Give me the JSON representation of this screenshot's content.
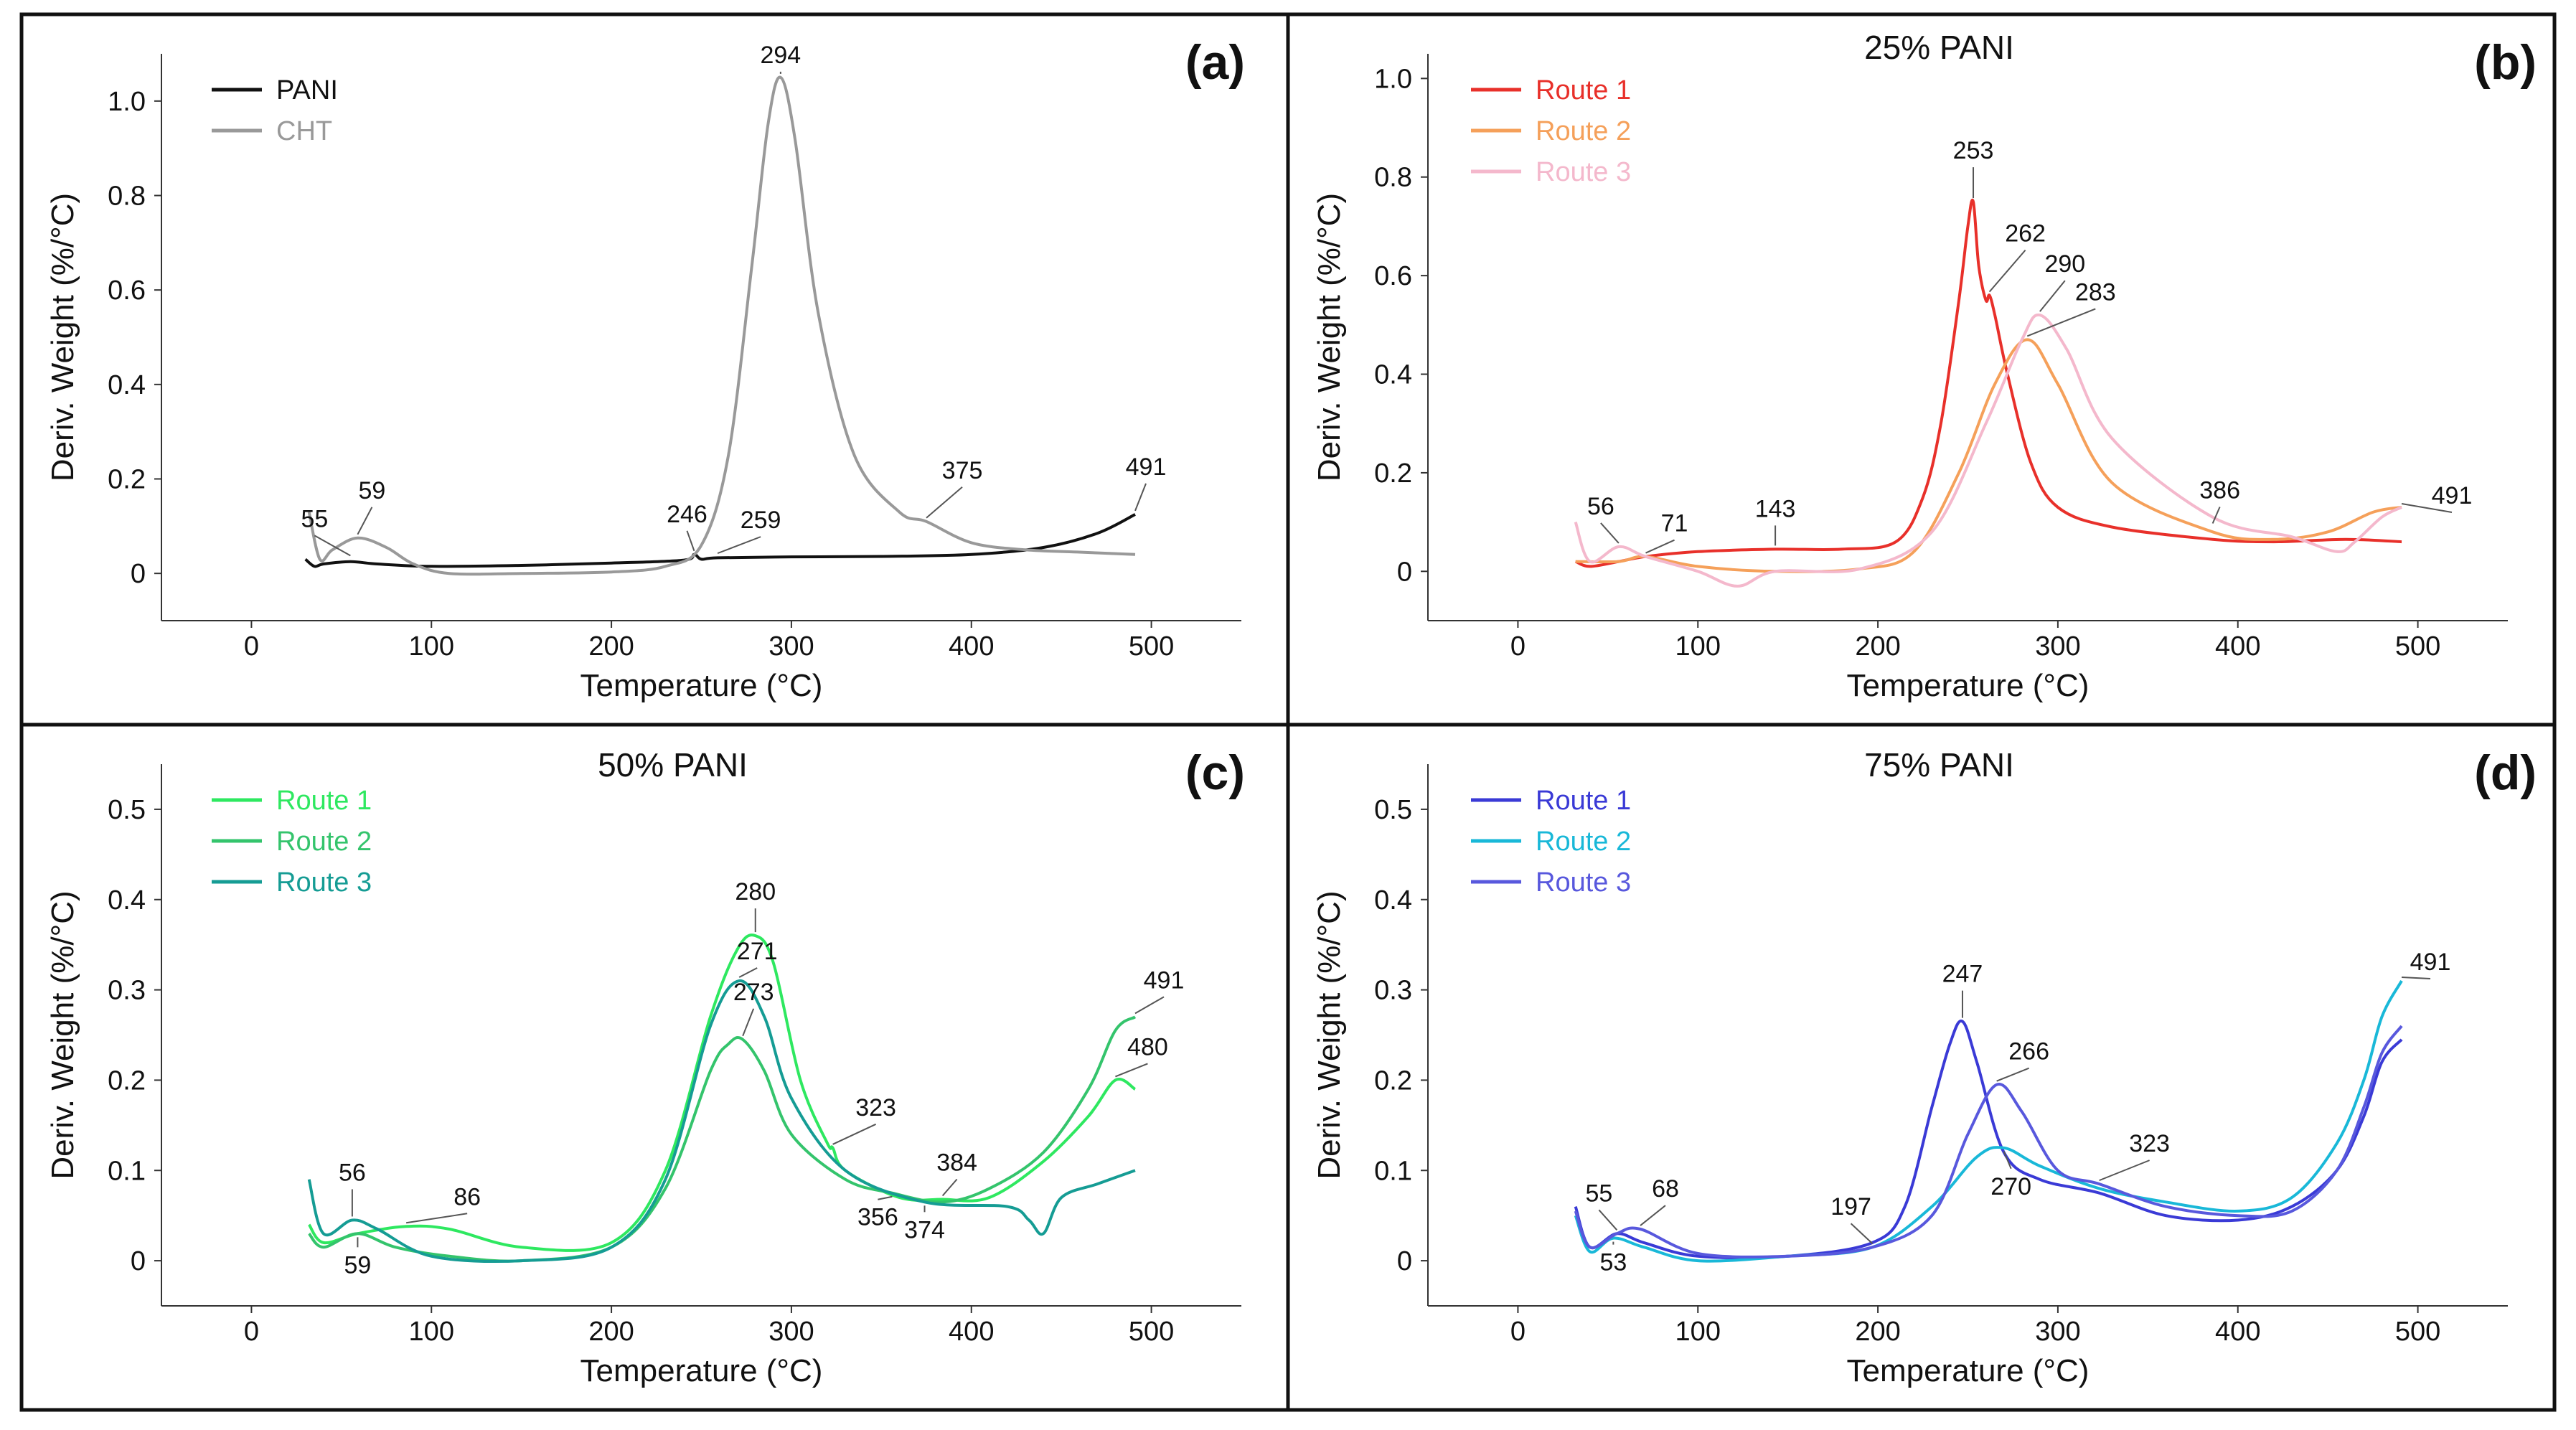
{
  "figure": {
    "axis_xlabel": "Temperature (°C)",
    "axis_ylabel": "Deriv. Weight (%/°C)"
  },
  "chart_data": [
    {
      "type": "line",
      "panel": "(a)",
      "title": "",
      "xlabel": "Temperature (°C)",
      "ylabel": "Deriv. Weight (%/°C)",
      "xlim": [
        -50,
        550
      ],
      "ylim": [
        -0.1,
        1.1
      ],
      "xticks": [
        0,
        100,
        200,
        300,
        400,
        500
      ],
      "yticks": [
        0,
        0.2,
        0.4,
        0.6,
        0.8,
        1.0
      ],
      "ytick_labels": [
        "0",
        "0.2",
        "0.4",
        "0.6",
        "0.8",
        "1.0"
      ],
      "legend": "top-left",
      "series": [
        {
          "name": "PANI",
          "color": "#111111",
          "x": [
            30,
            35,
            40,
            55,
            70,
            100,
            150,
            200,
            240,
            246,
            250,
            259,
            300,
            350,
            400,
            440,
            470,
            491
          ],
          "y": [
            0.03,
            0.015,
            0.02,
            0.025,
            0.02,
            0.015,
            0.017,
            0.022,
            0.028,
            0.04,
            0.03,
            0.033,
            0.035,
            0.036,
            0.04,
            0.055,
            0.085,
            0.125
          ]
        },
        {
          "name": "CHT",
          "color": "#999999",
          "x": [
            32,
            38,
            45,
            59,
            75,
            90,
            110,
            150,
            200,
            230,
            250,
            265,
            278,
            287,
            294,
            302,
            315,
            335,
            360,
            375,
            400,
            430,
            460,
            491
          ],
          "y": [
            0.13,
            0.03,
            0.05,
            0.075,
            0.055,
            0.02,
            0.0,
            0.0,
            0.003,
            0.015,
            0.06,
            0.25,
            0.65,
            0.95,
            1.05,
            0.92,
            0.55,
            0.25,
            0.13,
            0.11,
            0.065,
            0.05,
            0.045,
            0.04
          ]
        }
      ],
      "annotations": [
        {
          "text": "294",
          "x": 294,
          "y": 1.05
        },
        {
          "text": "59",
          "x": 59,
          "y": 0.075
        },
        {
          "text": "55",
          "x": 55,
          "y": 0.03
        },
        {
          "text": "246",
          "x": 246,
          "y": 0.04
        },
        {
          "text": "259",
          "x": 259,
          "y": 0.035
        },
        {
          "text": "375",
          "x": 375,
          "y": 0.11
        },
        {
          "text": "491",
          "x": 491,
          "y": 0.125
        }
      ]
    },
    {
      "type": "line",
      "panel": "(b)",
      "title": "25% PANI",
      "xlabel": "Temperature (°C)",
      "ylabel": "Deriv. Weight (%/°C)",
      "xlim": [
        -50,
        550
      ],
      "ylim": [
        -0.1,
        1.05
      ],
      "xticks": [
        0,
        100,
        200,
        300,
        400,
        500
      ],
      "yticks": [
        0,
        0.2,
        0.4,
        0.6,
        0.8,
        1.0
      ],
      "ytick_labels": [
        "0",
        "0.2",
        "0.4",
        "0.6",
        "0.8",
        "1.0"
      ],
      "legend": "top-left",
      "series": [
        {
          "name": "Route 1",
          "color": "#e8302a",
          "x": [
            32,
            40,
            56,
            71,
            100,
            143,
            180,
            210,
            225,
            235,
            245,
            250,
            253,
            256,
            260,
            262,
            265,
            272,
            285,
            300,
            330,
            386,
            420,
            460,
            491
          ],
          "y": [
            0.02,
            0.01,
            0.02,
            0.03,
            0.04,
            0.045,
            0.045,
            0.06,
            0.15,
            0.3,
            0.55,
            0.7,
            0.75,
            0.62,
            0.55,
            0.56,
            0.52,
            0.4,
            0.22,
            0.13,
            0.09,
            0.065,
            0.06,
            0.065,
            0.06
          ]
        },
        {
          "name": "Route 2",
          "color": "#f5a05a",
          "x": [
            32,
            56,
            71,
            100,
            143,
            190,
            220,
            245,
            265,
            283,
            300,
            330,
            386,
            420,
            450,
            475,
            491
          ],
          "y": [
            0.02,
            0.02,
            0.03,
            0.01,
            0.0,
            0.005,
            0.04,
            0.2,
            0.38,
            0.47,
            0.38,
            0.18,
            0.08,
            0.065,
            0.08,
            0.12,
            0.13
          ]
        },
        {
          "name": "Route 3",
          "color": "#f4b8cc",
          "x": [
            32,
            40,
            56,
            71,
            100,
            122,
            143,
            190,
            230,
            260,
            280,
            290,
            305,
            330,
            386,
            430,
            455,
            465,
            480,
            491
          ],
          "y": [
            0.1,
            0.02,
            0.05,
            0.03,
            0.0,
            -0.03,
            0.0,
            0.005,
            0.08,
            0.3,
            0.47,
            0.52,
            0.45,
            0.27,
            0.11,
            0.07,
            0.04,
            0.06,
            0.11,
            0.13
          ]
        }
      ],
      "annotations": [
        {
          "text": "253",
          "x": 253,
          "y": 0.75
        },
        {
          "text": "262",
          "x": 262,
          "y": 0.56
        },
        {
          "text": "290",
          "x": 290,
          "y": 0.52
        },
        {
          "text": "283",
          "x": 283,
          "y": 0.47
        },
        {
          "text": "56",
          "x": 56,
          "y": 0.05
        },
        {
          "text": "71",
          "x": 71,
          "y": 0.03
        },
        {
          "text": "143",
          "x": 143,
          "y": 0.045
        },
        {
          "text": "386",
          "x": 386,
          "y": 0.09
        },
        {
          "text": "491",
          "x": 491,
          "y": 0.13
        }
      ]
    },
    {
      "type": "line",
      "panel": "(c)",
      "title": "50% PANI",
      "xlabel": "Temperature (°C)",
      "ylabel": "Deriv. Weight (%/°C)",
      "xlim": [
        -50,
        550
      ],
      "ylim": [
        -0.05,
        0.55
      ],
      "xticks": [
        0,
        100,
        200,
        300,
        400,
        500
      ],
      "yticks": [
        0,
        0.1,
        0.2,
        0.3,
        0.4,
        0.5
      ],
      "ytick_labels": [
        "0",
        "0.1",
        "0.2",
        "0.3",
        "0.4",
        "0.5"
      ],
      "legend": "top-left",
      "series": [
        {
          "name": "Route 1",
          "color": "#2ee860",
          "x": [
            32,
            40,
            59,
            86,
            110,
            150,
            200,
            230,
            255,
            270,
            280,
            290,
            305,
            320,
            323,
            330,
            360,
            384,
            410,
            440,
            465,
            480,
            491
          ],
          "y": [
            0.04,
            0.02,
            0.03,
            0.038,
            0.035,
            0.015,
            0.02,
            0.1,
            0.27,
            0.345,
            0.36,
            0.33,
            0.2,
            0.13,
            0.125,
            0.1,
            0.07,
            0.068,
            0.07,
            0.11,
            0.16,
            0.2,
            0.19
          ]
        },
        {
          "name": "Route 2",
          "color": "#34c46c",
          "x": [
            32,
            40,
            59,
            80,
            110,
            150,
            200,
            230,
            255,
            265,
            273,
            285,
            300,
            330,
            356,
            384,
            410,
            440,
            465,
            480,
            491
          ],
          "y": [
            0.03,
            0.015,
            0.03,
            0.015,
            0.005,
            0.0,
            0.015,
            0.08,
            0.21,
            0.24,
            0.245,
            0.21,
            0.14,
            0.09,
            0.075,
            0.065,
            0.08,
            0.12,
            0.19,
            0.255,
            0.27
          ]
        },
        {
          "name": "Route 3",
          "color": "#159c94",
          "x": [
            32,
            40,
            56,
            70,
            100,
            150,
            200,
            230,
            255,
            271,
            285,
            300,
            330,
            374,
            420,
            432,
            440,
            450,
            470,
            491
          ],
          "y": [
            0.09,
            0.03,
            0.045,
            0.035,
            0.005,
            0.0,
            0.015,
            0.09,
            0.26,
            0.31,
            0.27,
            0.18,
            0.1,
            0.065,
            0.06,
            0.045,
            0.03,
            0.07,
            0.085,
            0.1
          ]
        }
      ],
      "annotations": [
        {
          "text": "280",
          "x": 280,
          "y": 0.36
        },
        {
          "text": "271",
          "x": 271,
          "y": 0.31
        },
        {
          "text": "273",
          "x": 273,
          "y": 0.245
        },
        {
          "text": "323",
          "x": 323,
          "y": 0.125
        },
        {
          "text": "56",
          "x": 56,
          "y": 0.045
        },
        {
          "text": "86",
          "x": 86,
          "y": 0.038
        },
        {
          "text": "59",
          "x": 59,
          "y": 0.03
        },
        {
          "text": "384",
          "x": 384,
          "y": 0.068
        },
        {
          "text": "356",
          "x": 356,
          "y": 0.075
        },
        {
          "text": "374",
          "x": 374,
          "y": 0.065
        },
        {
          "text": "491",
          "x": 491,
          "y": 0.27
        },
        {
          "text": "480",
          "x": 480,
          "y": 0.2
        }
      ]
    },
    {
      "type": "line",
      "panel": "(d)",
      "title": "75% PANI",
      "xlabel": "Temperature (°C)",
      "ylabel": "Deriv. Weight (%/°C)",
      "xlim": [
        -50,
        550
      ],
      "ylim": [
        -0.05,
        0.55
      ],
      "xticks": [
        0,
        100,
        200,
        300,
        400,
        500
      ],
      "yticks": [
        0,
        0.1,
        0.2,
        0.3,
        0.4,
        0.5
      ],
      "ytick_labels": [
        "0",
        "0.1",
        "0.2",
        "0.3",
        "0.4",
        "0.5"
      ],
      "legend": "top-left",
      "series": [
        {
          "name": "Route 1",
          "color": "#3a3ad6",
          "x": [
            32,
            40,
            55,
            70,
            100,
            150,
            197,
            215,
            230,
            240,
            247,
            255,
            270,
            290,
            323,
            360,
            400,
            430,
            455,
            470,
            480,
            491
          ],
          "y": [
            0.06,
            0.015,
            0.03,
            0.02,
            0.005,
            0.005,
            0.02,
            0.06,
            0.17,
            0.24,
            0.265,
            0.22,
            0.12,
            0.09,
            0.075,
            0.05,
            0.045,
            0.06,
            0.1,
            0.16,
            0.22,
            0.245
          ]
        },
        {
          "name": "Route 2",
          "color": "#19b8d8",
          "x": [
            32,
            40,
            53,
            70,
            100,
            150,
            197,
            230,
            255,
            270,
            290,
            323,
            360,
            400,
            430,
            455,
            470,
            480,
            491
          ],
          "y": [
            0.05,
            0.01,
            0.025,
            0.015,
            0.0,
            0.005,
            0.015,
            0.06,
            0.115,
            0.125,
            0.105,
            0.08,
            0.065,
            0.055,
            0.07,
            0.13,
            0.2,
            0.27,
            0.31
          ]
        },
        {
          "name": "Route 3",
          "color": "#5858dd",
          "x": [
            32,
            40,
            55,
            68,
            100,
            150,
            197,
            230,
            250,
            266,
            280,
            300,
            323,
            360,
            400,
            430,
            455,
            470,
            480,
            491
          ],
          "y": [
            0.055,
            0.015,
            0.03,
            0.035,
            0.008,
            0.005,
            0.015,
            0.05,
            0.14,
            0.195,
            0.165,
            0.1,
            0.085,
            0.06,
            0.05,
            0.055,
            0.1,
            0.17,
            0.23,
            0.26
          ]
        }
      ],
      "annotations": [
        {
          "text": "247",
          "x": 247,
          "y": 0.265
        },
        {
          "text": "266",
          "x": 266,
          "y": 0.195
        },
        {
          "text": "270",
          "x": 270,
          "y": 0.125
        },
        {
          "text": "323",
          "x": 323,
          "y": 0.085
        },
        {
          "text": "197",
          "x": 197,
          "y": 0.015
        },
        {
          "text": "55",
          "x": 55,
          "y": 0.03
        },
        {
          "text": "68",
          "x": 68,
          "y": 0.035
        },
        {
          "text": "53",
          "x": 53,
          "y": 0.025
        },
        {
          "text": "491",
          "x": 491,
          "y": 0.31
        }
      ]
    }
  ]
}
